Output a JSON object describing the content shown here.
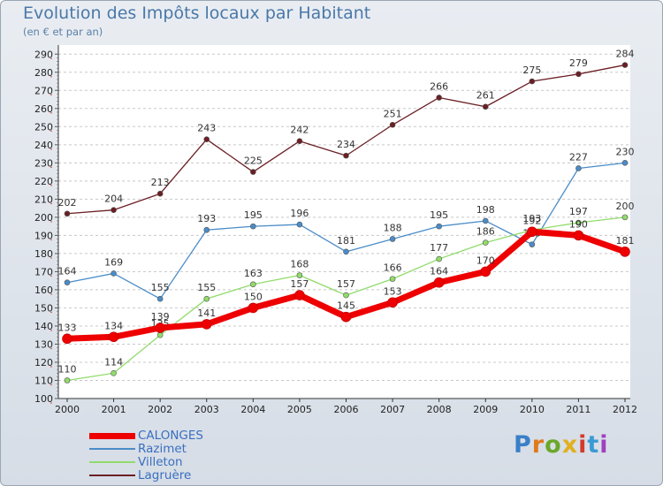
{
  "header": {
    "title": "Evolution des Impôts locaux par Habitant",
    "subtitle": "(en € et par an)"
  },
  "logo": {
    "text": "Proxiti",
    "colors": [
      "#3a7fc8",
      "#e07a1a",
      "#6aa82a",
      "#e0b020",
      "#d43a2a",
      "#3a9ad4",
      "#a040c0"
    ]
  },
  "chart_data": {
    "type": "line",
    "x": [
      "2000",
      "2001",
      "2002",
      "2003",
      "2004",
      "2005",
      "2006",
      "2007",
      "2008",
      "2009",
      "2010",
      "2011",
      "2012"
    ],
    "ylim": [
      100,
      290
    ],
    "yticks": [
      100,
      110,
      120,
      130,
      140,
      150,
      160,
      170,
      180,
      190,
      200,
      210,
      220,
      230,
      240,
      250,
      260,
      270,
      280,
      290
    ],
    "grid": "horizontal dashed",
    "legend": "bottom-left",
    "series": [
      {
        "name": "Lagruère",
        "color": "#6b1f24",
        "width": 1.3,
        "values": [
          202,
          204,
          213,
          243,
          225,
          242,
          234,
          251,
          266,
          261,
          275,
          279,
          284
        ]
      },
      {
        "name": "Razimet",
        "color": "#4a8cc8",
        "width": 1.3,
        "values": [
          164,
          169,
          155,
          193,
          195,
          196,
          181,
          188,
          195,
          198,
          185,
          227,
          230
        ]
      },
      {
        "name": "Villeton",
        "color": "#90dc6a",
        "width": 1.3,
        "values": [
          110,
          114,
          135,
          155,
          163,
          168,
          157,
          166,
          177,
          186,
          193,
          197,
          200
        ]
      },
      {
        "name": "CALONGES",
        "color": "#ee0000",
        "width": 7,
        "values": [
          133,
          134,
          139,
          141,
          150,
          157,
          145,
          153,
          164,
          170,
          192,
          190,
          181
        ]
      }
    ]
  }
}
